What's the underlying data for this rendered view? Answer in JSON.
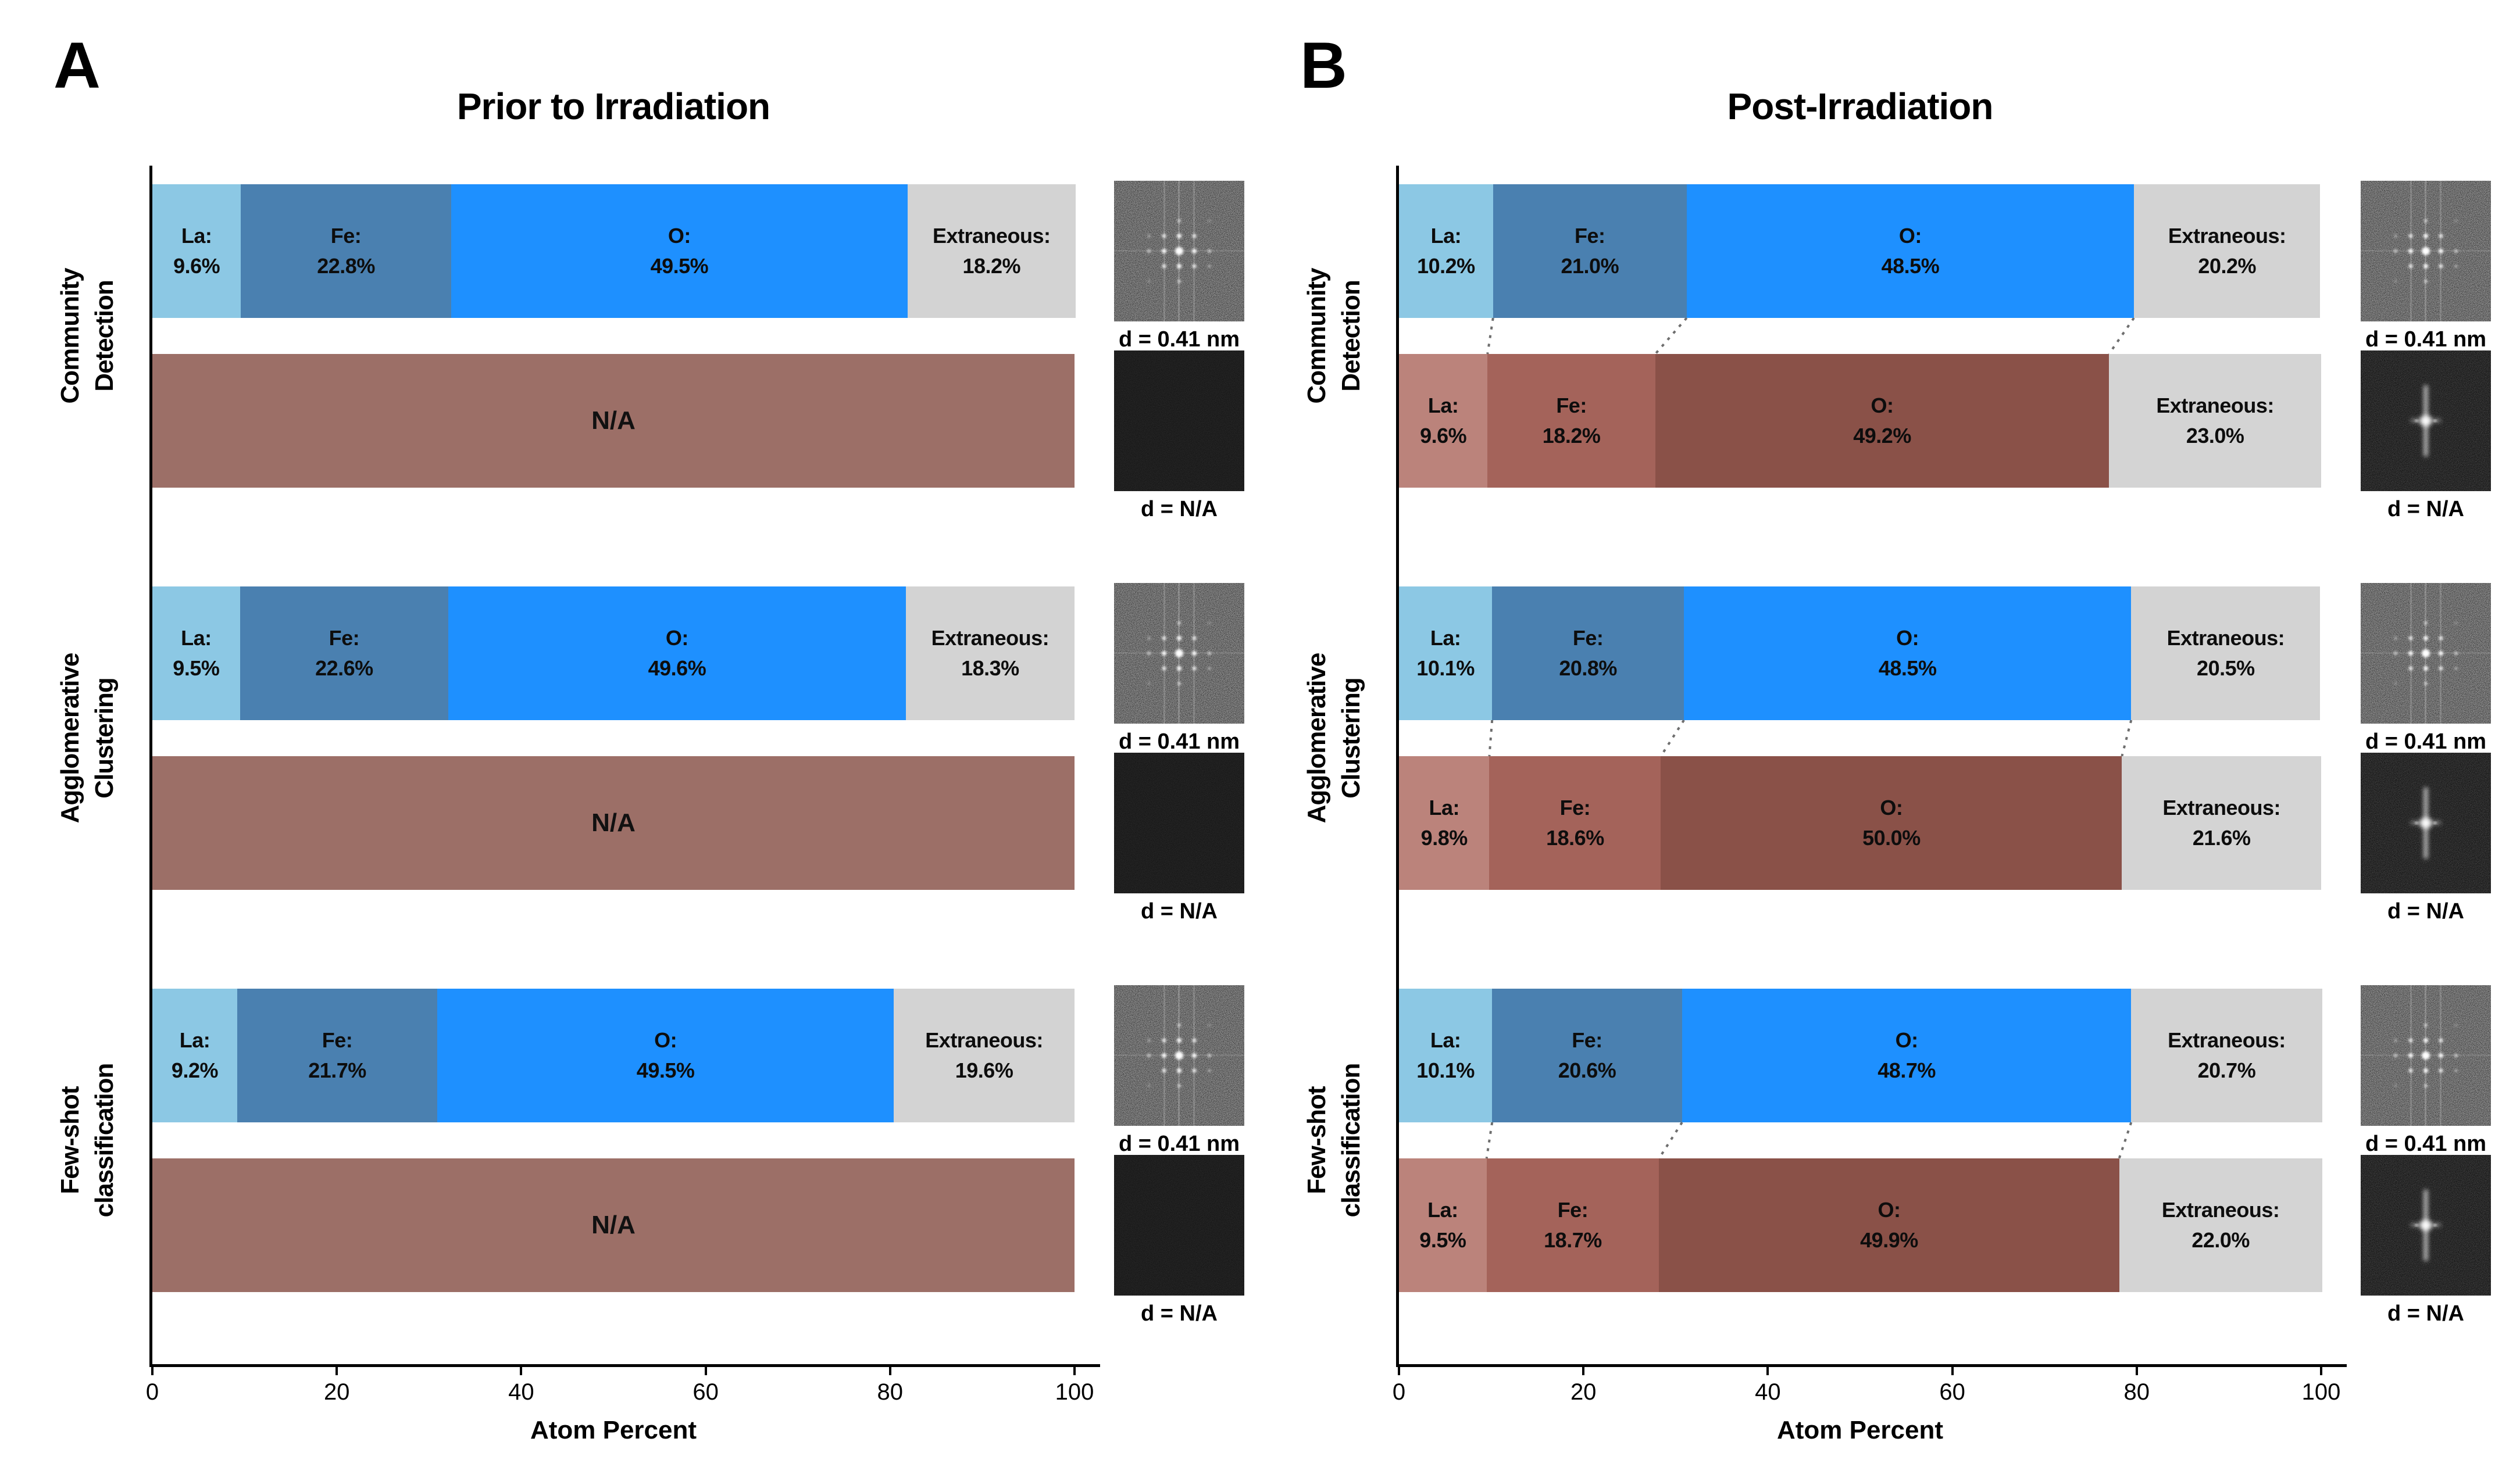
{
  "figure_name": "Atom percent composition bar charts with FFT insets",
  "colors": {
    "background": "#ffffff",
    "axis": "#000000",
    "connector": "#6e6e6e",
    "la_pre": "#8cc8e4",
    "fe_pre": "#4a80b0",
    "o_pre": "#1e90ff",
    "extraneous_pre": "#d3d3d3",
    "na_bar": "#9c6f67",
    "la_post": "#bb837b",
    "fe_post": "#a4635a",
    "o_post": "#8a5148",
    "extraneous_post": "#d4d4d4"
  },
  "chart_data": [
    {
      "type": "bar",
      "orientation": "horizontal-stacked",
      "panel_label": "A",
      "title": "Prior to Irradiation",
      "xlabel": "Atom Percent",
      "x_ticks": [
        0,
        20,
        40,
        60,
        80,
        100
      ],
      "xlim": [
        0,
        100
      ],
      "grid": false,
      "legend": "none",
      "connectors": false,
      "groups": [
        {
          "label_lines": [
            "Community",
            "Detection"
          ],
          "bars": [
            {
              "kind": "segmented",
              "segments": [
                {
                  "name": "La:",
                  "value": 9.6,
                  "value_text": "9.6%",
                  "color": "#8cc8e4"
                },
                {
                  "name": "Fe:",
                  "value": 22.8,
                  "value_text": "22.8%",
                  "color": "#4a80b0"
                },
                {
                  "name": "O:",
                  "value": 49.5,
                  "value_text": "49.5%",
                  "color": "#1e90ff"
                },
                {
                  "name": "Extraneous:",
                  "value": 18.2,
                  "value_text": "18.2%",
                  "color": "#d3d3d3"
                }
              ],
              "image": "fft-spots",
              "image_caption": "d = 0.41 nm"
            },
            {
              "kind": "na",
              "na_text": "N/A",
              "value": 100,
              "color": "#9c6f67",
              "image": "black-square",
              "image_caption": "d = N/A"
            }
          ]
        },
        {
          "label_lines": [
            "Agglomerative",
            "Clustering"
          ],
          "bars": [
            {
              "kind": "segmented",
              "segments": [
                {
                  "name": "La:",
                  "value": 9.5,
                  "value_text": "9.5%",
                  "color": "#8cc8e4"
                },
                {
                  "name": "Fe:",
                  "value": 22.6,
                  "value_text": "22.6%",
                  "color": "#4a80b0"
                },
                {
                  "name": "O:",
                  "value": 49.6,
                  "value_text": "49.6%",
                  "color": "#1e90ff"
                },
                {
                  "name": "Extraneous:",
                  "value": 18.3,
                  "value_text": "18.3%",
                  "color": "#d3d3d3"
                }
              ],
              "image": "fft-spots",
              "image_caption": "d = 0.41 nm"
            },
            {
              "kind": "na",
              "na_text": "N/A",
              "value": 100,
              "color": "#9c6f67",
              "image": "black-square",
              "image_caption": "d = N/A"
            }
          ]
        },
        {
          "label_lines": [
            "Few-shot",
            "classification"
          ],
          "bars": [
            {
              "kind": "segmented",
              "segments": [
                {
                  "name": "La:",
                  "value": 9.2,
                  "value_text": "9.2%",
                  "color": "#8cc8e4"
                },
                {
                  "name": "Fe:",
                  "value": 21.7,
                  "value_text": "21.7%",
                  "color": "#4a80b0"
                },
                {
                  "name": "O:",
                  "value": 49.5,
                  "value_text": "49.5%",
                  "color": "#1e90ff"
                },
                {
                  "name": "Extraneous:",
                  "value": 19.6,
                  "value_text": "19.6%",
                  "color": "#d3d3d3"
                }
              ],
              "image": "fft-spots",
              "image_caption": "d = 0.41 nm"
            },
            {
              "kind": "na",
              "na_text": "N/A",
              "value": 100,
              "color": "#9c6f67",
              "image": "black-square",
              "image_caption": "d = N/A"
            }
          ]
        }
      ]
    },
    {
      "type": "bar",
      "orientation": "horizontal-stacked",
      "panel_label": "B",
      "title": "Post-Irradiation",
      "xlabel": "Atom Percent",
      "x_ticks": [
        0,
        20,
        40,
        60,
        80,
        100
      ],
      "xlim": [
        0,
        100
      ],
      "grid": false,
      "legend": "none",
      "connectors": true,
      "groups": [
        {
          "label_lines": [
            "Community",
            "Detection"
          ],
          "bars": [
            {
              "kind": "segmented",
              "segments": [
                {
                  "name": "La:",
                  "value": 10.2,
                  "value_text": "10.2%",
                  "color": "#8cc8e4"
                },
                {
                  "name": "Fe:",
                  "value": 21.0,
                  "value_text": "21.0%",
                  "color": "#4a80b0"
                },
                {
                  "name": "O:",
                  "value": 48.5,
                  "value_text": "48.5%",
                  "color": "#1e90ff"
                },
                {
                  "name": "Extraneous:",
                  "value": 20.2,
                  "value_text": "20.2%",
                  "color": "#d3d3d3"
                }
              ],
              "image": "fft-spots",
              "image_caption": "d = 0.41 nm"
            },
            {
              "kind": "segmented",
              "segments": [
                {
                  "name": "La:",
                  "value": 9.6,
                  "value_text": "9.6%",
                  "color": "#bb837b"
                },
                {
                  "name": "Fe:",
                  "value": 18.2,
                  "value_text": "18.2%",
                  "color": "#a4635a"
                },
                {
                  "name": "O:",
                  "value": 49.2,
                  "value_text": "49.2%",
                  "color": "#8a5148"
                },
                {
                  "name": "Extraneous:",
                  "value": 23.0,
                  "value_text": "23.0%",
                  "color": "#d4d4d4"
                }
              ],
              "image": "fft-streak",
              "image_caption": "d = N/A"
            }
          ]
        },
        {
          "label_lines": [
            "Agglomerative",
            "Clustering"
          ],
          "bars": [
            {
              "kind": "segmented",
              "segments": [
                {
                  "name": "La:",
                  "value": 10.1,
                  "value_text": "10.1%",
                  "color": "#8cc8e4"
                },
                {
                  "name": "Fe:",
                  "value": 20.8,
                  "value_text": "20.8%",
                  "color": "#4a80b0"
                },
                {
                  "name": "O:",
                  "value": 48.5,
                  "value_text": "48.5%",
                  "color": "#1e90ff"
                },
                {
                  "name": "Extraneous:",
                  "value": 20.5,
                  "value_text": "20.5%",
                  "color": "#d3d3d3"
                }
              ],
              "image": "fft-spots",
              "image_caption": "d = 0.41 nm"
            },
            {
              "kind": "segmented",
              "segments": [
                {
                  "name": "La:",
                  "value": 9.8,
                  "value_text": "9.8%",
                  "color": "#bb837b"
                },
                {
                  "name": "Fe:",
                  "value": 18.6,
                  "value_text": "18.6%",
                  "color": "#a4635a"
                },
                {
                  "name": "O:",
                  "value": 50.0,
                  "value_text": "50.0%",
                  "color": "#8a5148"
                },
                {
                  "name": "Extraneous:",
                  "value": 21.6,
                  "value_text": "21.6%",
                  "color": "#d4d4d4"
                }
              ],
              "image": "fft-streak",
              "image_caption": "d = N/A"
            }
          ]
        },
        {
          "label_lines": [
            "Few-shot",
            "classification"
          ],
          "bars": [
            {
              "kind": "segmented",
              "segments": [
                {
                  "name": "La:",
                  "value": 10.1,
                  "value_text": "10.1%",
                  "color": "#8cc8e4"
                },
                {
                  "name": "Fe:",
                  "value": 20.6,
                  "value_text": "20.6%",
                  "color": "#4a80b0"
                },
                {
                  "name": "O:",
                  "value": 48.7,
                  "value_text": "48.7%",
                  "color": "#1e90ff"
                },
                {
                  "name": "Extraneous:",
                  "value": 20.7,
                  "value_text": "20.7%",
                  "color": "#d3d3d3"
                }
              ],
              "image": "fft-spots",
              "image_caption": "d = 0.41 nm"
            },
            {
              "kind": "segmented",
              "segments": [
                {
                  "name": "La:",
                  "value": 9.5,
                  "value_text": "9.5%",
                  "color": "#bb837b"
                },
                {
                  "name": "Fe:",
                  "value": 18.7,
                  "value_text": "18.7%",
                  "color": "#a4635a"
                },
                {
                  "name": "O:",
                  "value": 49.9,
                  "value_text": "49.9%",
                  "color": "#8a5148"
                },
                {
                  "name": "Extraneous:",
                  "value": 22.0,
                  "value_text": "22.0%",
                  "color": "#d4d4d4"
                }
              ],
              "image": "fft-streak",
              "image_caption": "d = N/A"
            }
          ]
        }
      ]
    }
  ]
}
